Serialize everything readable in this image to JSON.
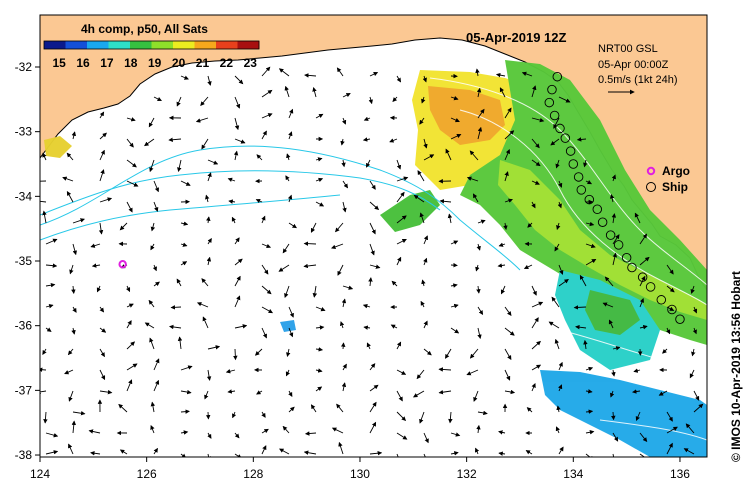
{
  "title": "05-Apr-2019 12Z",
  "colorbar": {
    "label": "4h comp, p50, All Sats",
    "ticks": [
      "15",
      "16",
      "17",
      "18",
      "19",
      "20",
      "21",
      "22",
      "23"
    ],
    "colors": [
      "#0b1a8c",
      "#1450d8",
      "#19a8f0",
      "#2ee0c8",
      "#35c040",
      "#8ee02a",
      "#ecec20",
      "#f6a81c",
      "#e8401c",
      "#a81010"
    ]
  },
  "info": {
    "line1": "NRT00 GSL",
    "line2": "05-Apr 00:00Z",
    "line3": "0.5m/s (1kt 24h)"
  },
  "legend": {
    "argo_label": "Argo",
    "ship_label": "Ship",
    "argo_color": "#e020e0"
  },
  "credit": "© IMOS 10-Apr-2019 13:56 Hobart",
  "axes": {
    "lon_ticks": [
      "124",
      "126",
      "128",
      "130",
      "132",
      "134",
      "136"
    ],
    "lat_ticks": [
      "-32",
      "-33",
      "-34",
      "-35",
      "-36",
      "-37",
      "-38"
    ],
    "lon_range": [
      124,
      136.5
    ],
    "lat_range": [
      -31.4,
      -38.1
    ]
  },
  "colors": {
    "land": "#fbc893",
    "sea": "#ffffff",
    "current": "#28c8e8"
  },
  "argo_float": {
    "lon": 125.55,
    "lat": -35.05
  }
}
